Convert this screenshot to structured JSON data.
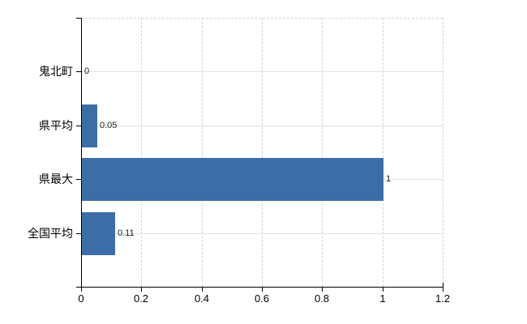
{
  "chart_data": {
    "type": "bar",
    "orientation": "horizontal",
    "title": "",
    "categories": [
      "鬼北町",
      "県平均",
      "県最大",
      "全国平均"
    ],
    "values": [
      0,
      0.05,
      1,
      0.11
    ],
    "value_labels": [
      "0",
      "0.05",
      "1",
      "0.11"
    ],
    "xlim": [
      0,
      1.2
    ],
    "x_ticks": [
      0,
      0.2,
      0.4,
      0.6,
      0.8,
      1,
      1.2
    ],
    "x_tick_labels": [
      "0",
      "0.2",
      "0.4",
      "0.6",
      "0.8",
      "1",
      "1.2"
    ],
    "grid": true,
    "legend": false,
    "legend_position": "none",
    "bar_color": "#3d6da7",
    "h_grid_color": "#dde3db",
    "v_grid_color": "#d7d3d3",
    "axis_color": "#000000",
    "label_color": "#000000",
    "background_color": "#ffffff"
  }
}
